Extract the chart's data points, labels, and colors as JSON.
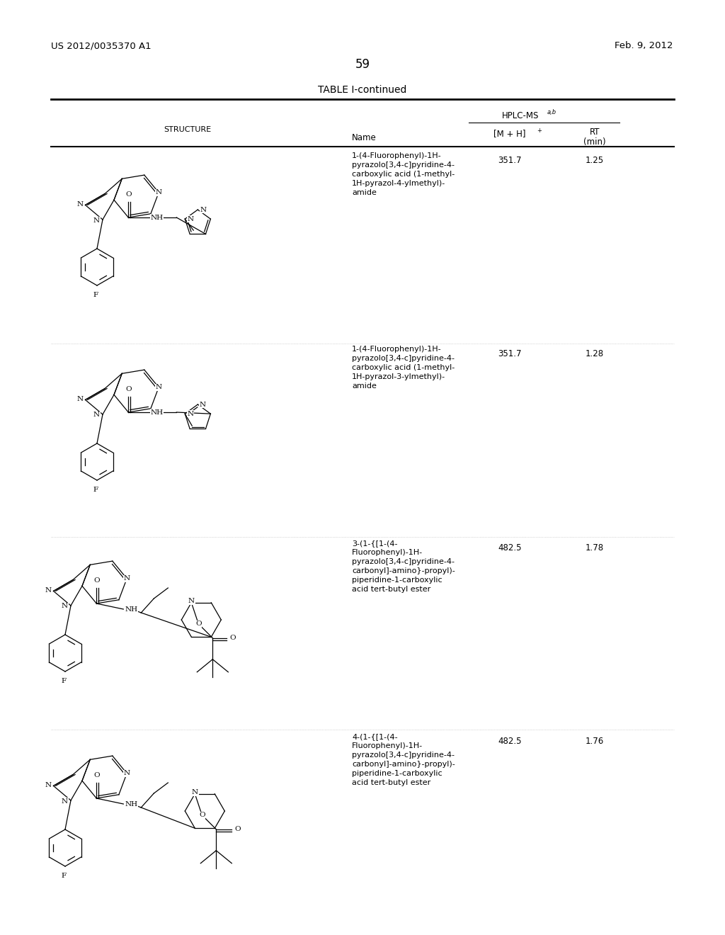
{
  "page_header_left": "US 2012/0035370 A1",
  "page_header_right": "Feb. 9, 2012",
  "page_number": "59",
  "table_title": "TABLE I-continued",
  "rows": [
    {
      "name_lines": [
        "1-(4-Fluorophenyl)-1H-",
        "pyrazolo[3,4-c]pyridine-4-",
        "carboxylic acid (1-methyl-",
        "1H-pyrazol-4-ylmethyl)-",
        "amide"
      ],
      "mh": "351.7",
      "rt": "1.25",
      "struct_type": 1
    },
    {
      "name_lines": [
        "1-(4-Fluorophenyl)-1H-",
        "pyrazolo[3,4-c]pyridine-4-",
        "carboxylic acid (1-methyl-",
        "1H-pyrazol-3-ylmethyl)-",
        "amide"
      ],
      "mh": "351.7",
      "rt": "1.28",
      "struct_type": 2
    },
    {
      "name_lines": [
        "3-(1-{[1-(4-",
        "Fluorophenyl)-1H-",
        "pyrazolo[3,4-c]pyridine-4-",
        "carbonyl]-amino}-propyl)-",
        "piperidine-1-carboxylic",
        "acid tert-butyl ester"
      ],
      "mh": "482.5",
      "rt": "1.78",
      "struct_type": 3
    },
    {
      "name_lines": [
        "4-(1-{[1-(4-",
        "Fluorophenyl)-1H-",
        "pyrazolo[3,4-c]pyridine-4-",
        "carbonyl]-amino}-propyl)-",
        "piperidine-1-carboxylic",
        "acid tert-butyl ester"
      ],
      "mh": "482.5",
      "rt": "1.76",
      "struct_type": 4
    }
  ]
}
